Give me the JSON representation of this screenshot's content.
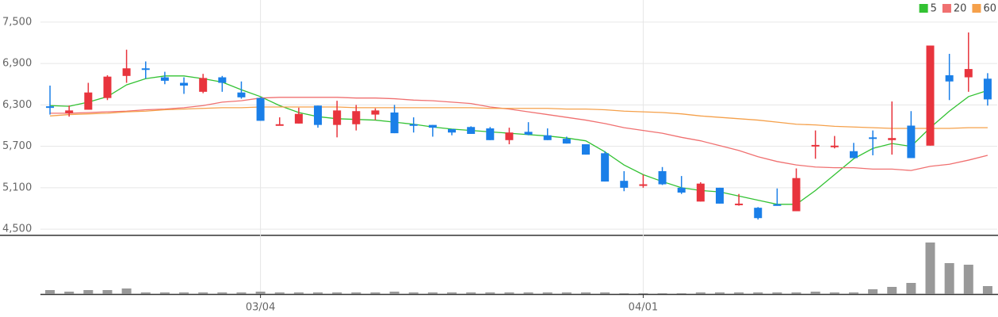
{
  "chart_data": {
    "type": "candlestick",
    "categories": [
      null,
      null,
      null,
      null,
      null,
      null,
      null,
      null,
      null,
      null,
      null,
      "03/04",
      null,
      null,
      null,
      null,
      null,
      null,
      null,
      null,
      null,
      null,
      null,
      null,
      null,
      null,
      null,
      null,
      null,
      null,
      null,
      "04/01",
      null,
      null,
      null,
      null,
      null,
      null,
      null,
      null,
      null,
      null,
      null,
      null,
      null,
      null,
      null,
      null,
      null,
      null
    ],
    "open": [
      6280,
      6180,
      6230,
      6400,
      6720,
      6830,
      6700,
      6620,
      6490,
      6700,
      6480,
      6400,
      6010,
      6030,
      6290,
      6010,
      6020,
      6160,
      6190,
      6020,
      6010,
      5950,
      5980,
      5960,
      5790,
      5910,
      5860,
      5810,
      5730,
      5600,
      5200,
      5130,
      5340,
      5100,
      4900,
      5100,
      4860,
      4810,
      4860,
      4760,
      5710,
      5700,
      5630,
      5830,
      5790,
      6000,
      5710,
      6730,
      6700,
      6680
    ],
    "high": [
      6580,
      6290,
      6620,
      6730,
      7100,
      6930,
      6780,
      6700,
      6750,
      6720,
      6640,
      6410,
      6120,
      6260,
      6290,
      6360,
      6300,
      6250,
      6300,
      6120,
      6010,
      5950,
      5990,
      5980,
      5970,
      6050,
      5960,
      5840,
      5730,
      5630,
      5340,
      5290,
      5400,
      5270,
      5180,
      5100,
      5010,
      4820,
      5090,
      5380,
      5930,
      5850,
      5750,
      5930,
      6350,
      6210,
      7160,
      7040,
      7350,
      6760
    ],
    "low": [
      6160,
      6130,
      6230,
      6370,
      6620,
      6680,
      6600,
      6460,
      6470,
      6490,
      6390,
      6070,
      6000,
      6030,
      5970,
      5830,
      5930,
      6080,
      5890,
      5900,
      5840,
      5860,
      5880,
      5790,
      5730,
      5860,
      5790,
      5740,
      5580,
      5190,
      5050,
      5100,
      5140,
      5010,
      4900,
      4870,
      4840,
      4640,
      4840,
      4760,
      5520,
      5670,
      5530,
      5570,
      5580,
      5530,
      5710,
      6370,
      6490,
      6290
    ],
    "close": [
      6260,
      6220,
      6480,
      6710,
      6830,
      6820,
      6650,
      6580,
      6690,
      6620,
      6410,
      6070,
      6020,
      6170,
      6010,
      6220,
      6210,
      6220,
      5890,
      6000,
      5970,
      5900,
      5880,
      5790,
      5900,
      5870,
      5790,
      5740,
      5580,
      5190,
      5100,
      5150,
      5150,
      5030,
      5160,
      4870,
      4870,
      4660,
      4850,
      5240,
      5720,
      5710,
      5530,
      5820,
      5820,
      5530,
      7160,
      6640,
      6820,
      6380
    ],
    "up_color": "#e8343d",
    "down_color": "#1a7fe8",
    "moving_averages": [
      {
        "name": "5",
        "color": "#33c233",
        "values": [
          6290,
          6280,
          6340,
          6420,
          6590,
          6680,
          6720,
          6720,
          6680,
          6630,
          6520,
          6420,
          6290,
          6190,
          6130,
          6100,
          6090,
          6080,
          6050,
          6020,
          5980,
          5950,
          5930,
          5910,
          5890,
          5870,
          5850,
          5820,
          5780,
          5620,
          5430,
          5290,
          5190,
          5100,
          5060,
          5040,
          4980,
          4920,
          4860,
          4860,
          5060,
          5290,
          5520,
          5670,
          5740,
          5700,
          5970,
          6210,
          6420,
          6510
        ]
      },
      {
        "name": "20",
        "color": "#f07070",
        "values": [
          6180,
          6180,
          6190,
          6200,
          6210,
          6230,
          6240,
          6260,
          6290,
          6340,
          6360,
          6400,
          6410,
          6410,
          6410,
          6410,
          6400,
          6400,
          6390,
          6370,
          6360,
          6340,
          6320,
          6270,
          6240,
          6200,
          6160,
          6120,
          6080,
          6030,
          5970,
          5930,
          5890,
          5830,
          5780,
          5710,
          5640,
          5550,
          5480,
          5430,
          5400,
          5390,
          5390,
          5370,
          5370,
          5350,
          5410,
          5440,
          5500,
          5570
        ]
      },
      {
        "name": "60",
        "color": "#f5a04a",
        "values": [
          6140,
          6160,
          6170,
          6180,
          6200,
          6210,
          6230,
          6240,
          6250,
          6260,
          6260,
          6270,
          6270,
          6270,
          6270,
          6270,
          6260,
          6260,
          6260,
          6260,
          6260,
          6260,
          6260,
          6250,
          6250,
          6250,
          6250,
          6240,
          6240,
          6230,
          6210,
          6200,
          6190,
          6170,
          6140,
          6120,
          6100,
          6080,
          6050,
          6020,
          6010,
          5990,
          5980,
          5970,
          5960,
          5960,
          5960,
          5960,
          5970,
          5970
        ]
      }
    ],
    "volume": {
      "color": "#999999",
      "values": [
        5,
        3,
        5,
        5,
        7,
        2,
        2,
        2,
        2,
        2,
        2,
        3,
        2,
        2,
        2,
        2,
        2,
        2,
        3,
        2,
        2,
        2,
        2,
        2,
        2,
        2,
        2,
        2,
        2,
        2,
        1,
        1,
        1,
        1,
        2,
        2,
        2,
        2,
        2,
        2,
        3,
        2,
        2,
        6,
        9,
        14,
        65,
        39,
        37,
        10
      ]
    },
    "ylim": [
      4410,
      7820
    ],
    "yticks": [
      {
        "value": 4500,
        "label": "4,500"
      },
      {
        "value": 5100,
        "label": "5,100"
      },
      {
        "value": 5700,
        "label": "5,700"
      },
      {
        "value": 6300,
        "label": "6,300"
      },
      {
        "value": 6900,
        "label": "6,900"
      },
      {
        "value": 7500,
        "label": "7,500"
      }
    ],
    "grid": true
  }
}
